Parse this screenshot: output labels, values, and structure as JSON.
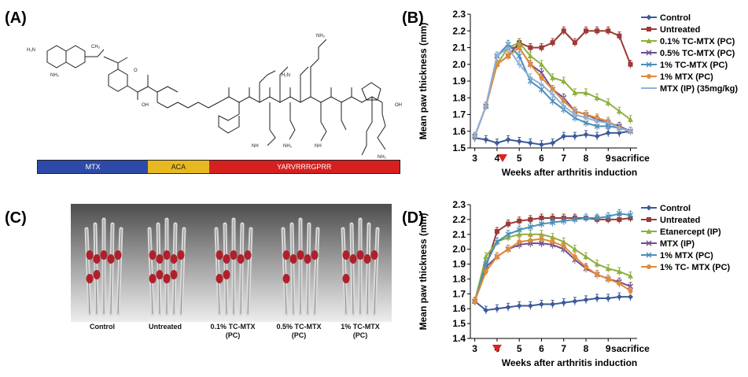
{
  "panels": {
    "a": {
      "letter": "(A)",
      "segments": [
        {
          "label": "MTX",
          "color": "#2e4aa6",
          "frac": 0.305
        },
        {
          "label": "ACA",
          "color": "#e8b820",
          "frac": 0.168
        },
        {
          "label": "YARVRRRGPRR",
          "color": "#d61f1f",
          "frac": 0.527
        }
      ]
    },
    "b": {
      "letter": "(B)"
    },
    "c": {
      "letter": "(C)",
      "labels": [
        {
          "line1": "Control",
          "line2": ""
        },
        {
          "line1": "Untreated",
          "line2": ""
        },
        {
          "line1": "0.1% TC-MTX",
          "line2": "(PC)"
        },
        {
          "line1": "0.5% TC-MTX",
          "line2": "(PC)"
        },
        {
          "line1": "1% TC-MTX",
          "line2": "(PC)"
        }
      ]
    },
    "d": {
      "letter": "(D)"
    }
  },
  "chart_data": [
    {
      "type": "line",
      "panel": "B",
      "ylabel": "Mean paw thickness (mm)",
      "xlabel": "Weeks after arthritis induction",
      "ylim": [
        1.5,
        2.3
      ],
      "yticks": [
        1.5,
        1.6,
        1.7,
        1.8,
        1.9,
        2.0,
        2.1,
        2.2,
        2.3
      ],
      "xticks": [
        {
          "x": 3,
          "label": "3"
        },
        {
          "x": 4,
          "label": "4"
        },
        {
          "x": 5,
          "label": "5"
        },
        {
          "x": 6,
          "label": "6"
        },
        {
          "x": 7,
          "label": "7"
        },
        {
          "x": 8,
          "label": "8"
        },
        {
          "x": 9,
          "label": "9"
        },
        {
          "x": 10,
          "label": "sacrifice"
        }
      ],
      "xlim": [
        2.8,
        10.3
      ],
      "marker_at": 4.25,
      "legend": "top-right",
      "x": [
        3,
        3.5,
        4,
        4.5,
        5,
        5.5,
        6,
        6.5,
        7,
        7.5,
        8,
        8.5,
        9,
        9.5,
        10
      ],
      "series": [
        {
          "name": "Control",
          "color": "#3c5a9a",
          "marker": "diamond",
          "values": [
            1.56,
            1.55,
            1.53,
            1.55,
            1.54,
            1.53,
            1.52,
            1.53,
            1.57,
            1.57,
            1.58,
            1.57,
            1.59,
            1.59,
            1.6
          ]
        },
        {
          "name": "Untreated",
          "color": "#9b3a36",
          "marker": "square",
          "values": [
            1.57,
            1.75,
            2.0,
            2.05,
            2.13,
            2.1,
            2.1,
            2.13,
            2.2,
            2.13,
            2.2,
            2.2,
            2.2,
            2.17,
            2.0
          ]
        },
        {
          "name": "0.1% TC-MTX (PC)",
          "color": "#8db03e",
          "marker": "triangle",
          "values": [
            1.57,
            1.75,
            2.0,
            2.1,
            2.13,
            2.05,
            2.0,
            1.92,
            1.9,
            1.83,
            1.83,
            1.8,
            1.77,
            1.72,
            1.67
          ]
        },
        {
          "name": "0.5% TC-MTX (PC)",
          "color": "#6c4f92",
          "marker": "cross",
          "values": [
            1.57,
            1.75,
            2.05,
            2.1,
            2.1,
            2.0,
            1.95,
            1.85,
            1.8,
            1.72,
            1.7,
            1.67,
            1.65,
            1.63,
            1.6
          ]
        },
        {
          "name": "1% TC-MTX (PC)",
          "color": "#4a8fb8",
          "marker": "cross",
          "values": [
            1.57,
            1.75,
            2.05,
            2.12,
            2.05,
            1.9,
            1.85,
            1.78,
            1.73,
            1.68,
            1.65,
            1.63,
            1.63,
            1.62,
            1.6
          ]
        },
        {
          "name": "1% MTX (PC)",
          "color": "#e28a35",
          "marker": "circle",
          "values": [
            1.57,
            1.75,
            2.0,
            2.05,
            2.1,
            2.0,
            1.92,
            1.85,
            1.78,
            1.72,
            1.7,
            1.68,
            1.66,
            1.62,
            1.6
          ]
        },
        {
          "name": "MTX (IP) (35mg/kg)",
          "color": "#8fb0d8",
          "marker": "dash",
          "values": [
            1.57,
            1.75,
            2.05,
            2.1,
            2.0,
            1.92,
            1.88,
            1.82,
            1.75,
            1.7,
            1.68,
            1.66,
            1.65,
            1.62,
            1.6
          ]
        }
      ]
    },
    {
      "type": "line",
      "panel": "D",
      "ylabel": "Mean paw thickness (mm)",
      "xlabel": "Weeks after arthritis induction",
      "ylim": [
        1.4,
        2.3
      ],
      "yticks": [
        1.4,
        1.5,
        1.6,
        1.7,
        1.8,
        1.9,
        2.0,
        2.1,
        2.2,
        2.3
      ],
      "xticks": [
        {
          "x": 3,
          "label": "3"
        },
        {
          "x": 4,
          "label": "4"
        },
        {
          "x": 5,
          "label": "5"
        },
        {
          "x": 6,
          "label": "6"
        },
        {
          "x": 7,
          "label": "7"
        },
        {
          "x": 8,
          "label": "8"
        },
        {
          "x": 9,
          "label": "9"
        },
        {
          "x": 10,
          "label": "sacrifice"
        }
      ],
      "xlim": [
        2.8,
        10.3
      ],
      "marker_at": 4.0,
      "legend": "top-right",
      "x": [
        3,
        3.5,
        4,
        4.5,
        5,
        5.5,
        6,
        6.5,
        7,
        7.5,
        8,
        8.5,
        9,
        9.5,
        10
      ],
      "series": [
        {
          "name": "Control",
          "color": "#3c5a9a",
          "marker": "diamond",
          "values": [
            1.65,
            1.59,
            1.6,
            1.61,
            1.62,
            1.62,
            1.63,
            1.63,
            1.64,
            1.65,
            1.66,
            1.67,
            1.67,
            1.68,
            1.68
          ]
        },
        {
          "name": "Untreated",
          "color": "#9b3a36",
          "marker": "square",
          "values": [
            1.65,
            1.88,
            2.12,
            2.17,
            2.19,
            2.2,
            2.21,
            2.21,
            2.21,
            2.21,
            2.21,
            2.2,
            2.2,
            2.2,
            2.21
          ]
        },
        {
          "name": "Etanercept (IP)",
          "color": "#8db03e",
          "marker": "triangle",
          "values": [
            1.65,
            1.95,
            2.05,
            2.08,
            2.1,
            2.1,
            2.1,
            2.08,
            2.05,
            2.0,
            1.95,
            1.9,
            1.87,
            1.85,
            1.82
          ]
        },
        {
          "name": "MTX (IP)",
          "color": "#6c4f92",
          "marker": "cross",
          "values": [
            1.65,
            1.88,
            1.95,
            2.0,
            2.03,
            2.04,
            2.04,
            2.03,
            2.0,
            1.93,
            1.87,
            1.83,
            1.8,
            1.78,
            1.75
          ]
        },
        {
          "name": "1% MTX (PC)",
          "color": "#4a8fb8",
          "marker": "cross",
          "values": [
            1.65,
            1.9,
            2.05,
            2.1,
            2.13,
            2.15,
            2.17,
            2.18,
            2.19,
            2.2,
            2.21,
            2.21,
            2.22,
            2.24,
            2.23
          ]
        },
        {
          "name": "1% TC- MTX (PC)",
          "color": "#e28a35",
          "marker": "circle",
          "values": [
            1.65,
            1.85,
            1.95,
            2.0,
            2.05,
            2.06,
            2.07,
            2.05,
            2.02,
            1.95,
            1.88,
            1.83,
            1.8,
            1.77,
            1.72
          ]
        }
      ]
    }
  ]
}
